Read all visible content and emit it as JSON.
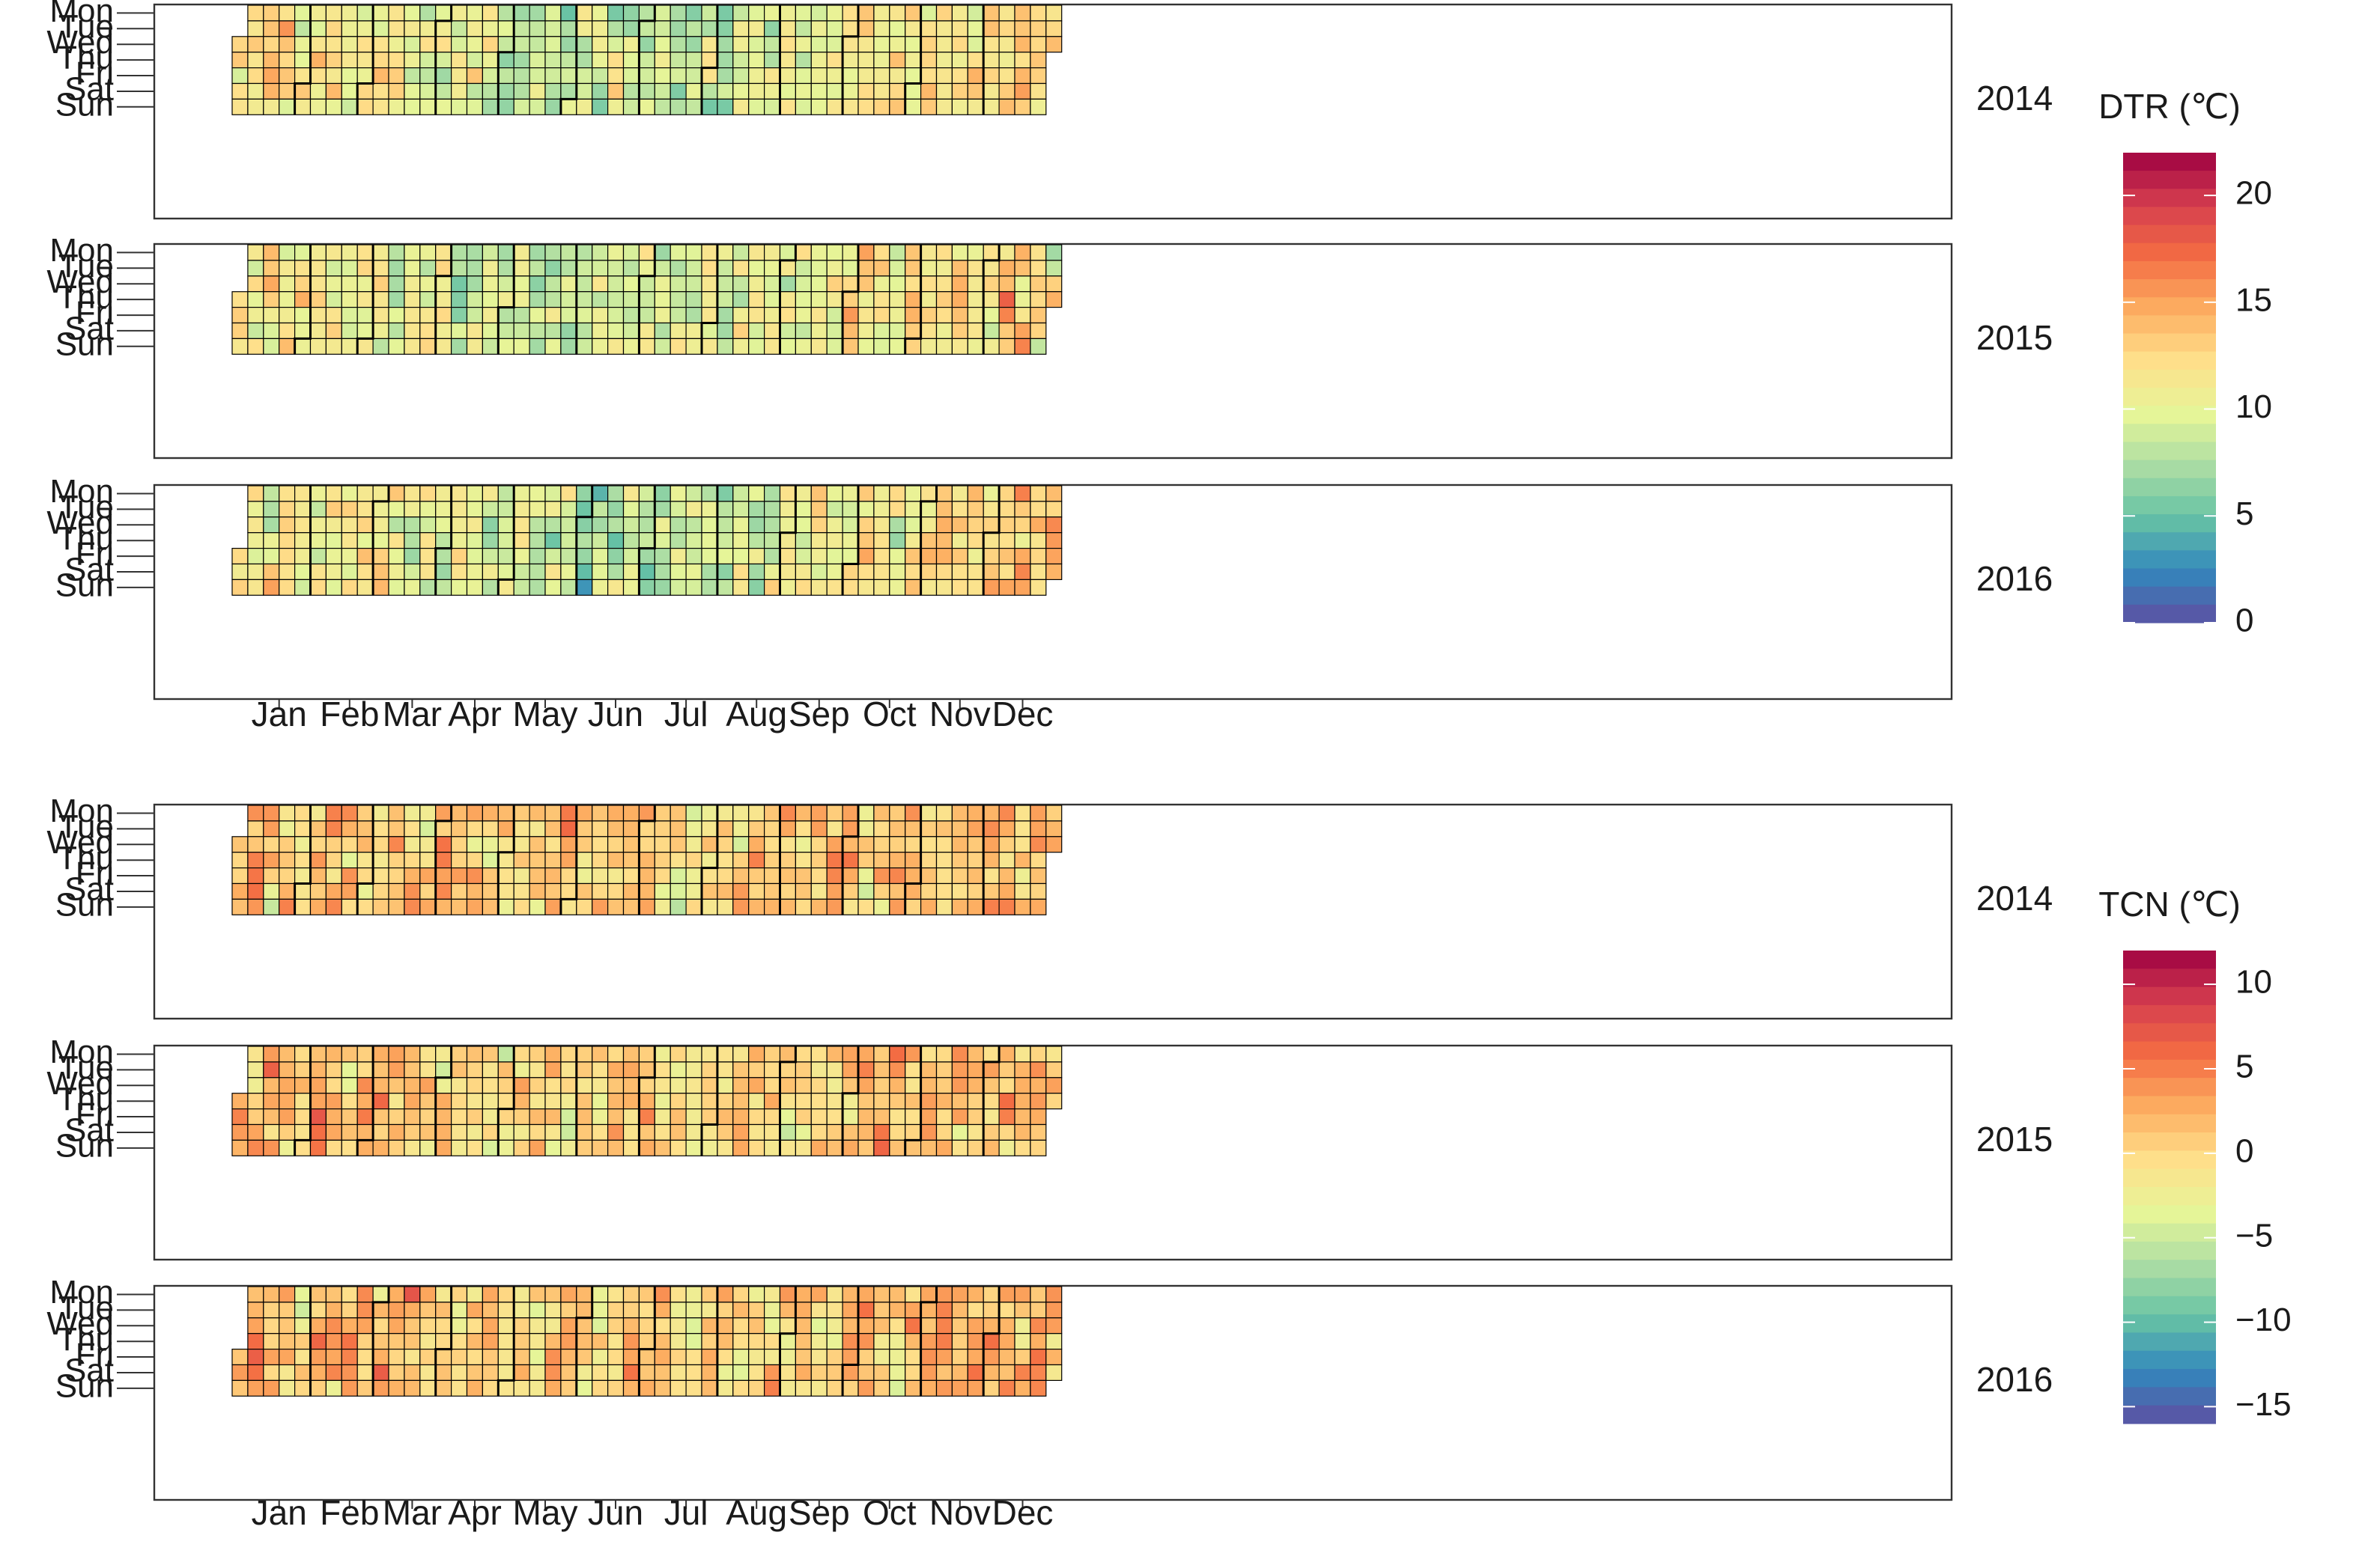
{
  "chart_data": [
    {
      "type": "heatmap",
      "variable": "DTR",
      "title": "DTR (℃)",
      "years": [
        "2014",
        "2015",
        "2016"
      ],
      "weekday_labels": [
        "Mon",
        "Tue",
        "Wed",
        "Thu",
        "Fri",
        "Sat",
        "Sun"
      ],
      "month_labels": [
        "Jan",
        "Feb",
        "Mar",
        "Apr",
        "May",
        "Jun",
        "Jul",
        "Aug",
        "Sep",
        "Oct",
        "Nov",
        "Dec"
      ],
      "colorbar": {
        "range": [
          0,
          22
        ],
        "ticks": [
          20,
          15,
          10,
          5,
          0
        ]
      }
    },
    {
      "type": "heatmap",
      "variable": "TCN",
      "title": "TCN (℃)",
      "years": [
        "2014",
        "2015",
        "2016"
      ],
      "weekday_labels": [
        "Mon",
        "Tue",
        "Wed",
        "Thu",
        "Fri",
        "Sat",
        "Sun"
      ],
      "month_labels": [
        "Jan",
        "Feb",
        "Mar",
        "Apr",
        "May",
        "Jun",
        "Jul",
        "Aug",
        "Sep",
        "Oct",
        "Nov",
        "Dec"
      ],
      "colorbar": {
        "range": [
          -16,
          12
        ],
        "ticks": [
          10,
          5,
          0,
          -5,
          -10,
          -15
        ]
      }
    }
  ],
  "colors": {
    "palette": [
      "#5e4fa2",
      "#3288bd",
      "#66c2a5",
      "#abdda4",
      "#e6f598",
      "#fee08b",
      "#fdae61",
      "#f46d43",
      "#d53e4f",
      "#9e0142"
    ],
    "frame": "#333333",
    "cell_border": "#000000"
  }
}
